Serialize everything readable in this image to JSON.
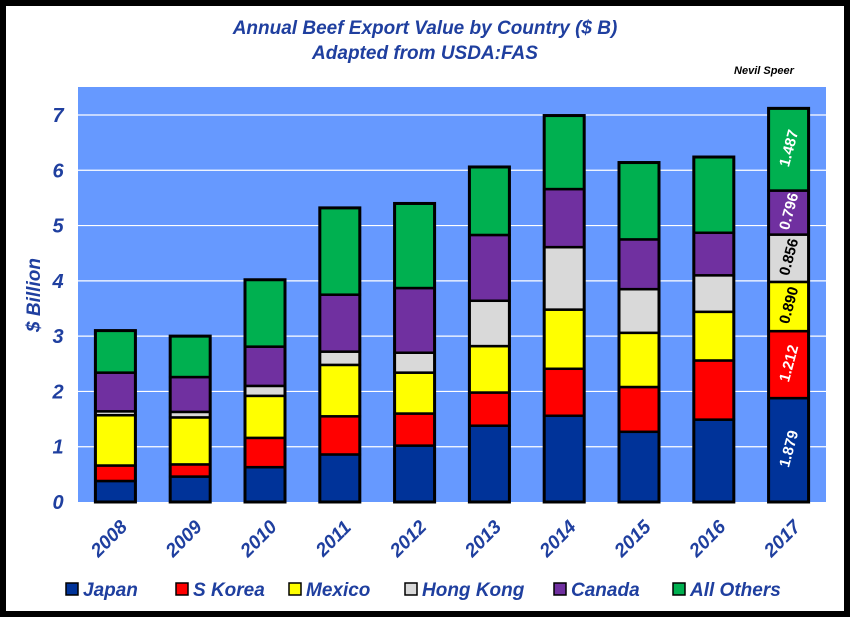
{
  "chart_data": {
    "type": "bar",
    "stacked": true,
    "title": "Annual Beef Export Value by Country ($ B)",
    "subtitle": "Adapted from USDA:FAS",
    "author": "Nevil Speer",
    "xlabel": "",
    "ylabel": "$ Billion",
    "ylim": [
      0,
      7
    ],
    "yticks": [
      "0",
      "1",
      "2",
      "3",
      "4",
      "5",
      "6",
      "7"
    ],
    "grid": true,
    "legend_position": "bottom",
    "plot_background": "#6699ff",
    "categories": [
      "2008",
      "2009",
      "2010",
      "2011",
      "2012",
      "2013",
      "2014",
      "2015",
      "2016",
      "2017"
    ],
    "series": [
      {
        "name": "Japan",
        "color": "#003399",
        "values": [
          0.38,
          0.46,
          0.63,
          0.86,
          1.02,
          1.38,
          1.56,
          1.27,
          1.49,
          1.879
        ]
      },
      {
        "name": "S Korea",
        "color": "#ff0000",
        "values": [
          0.28,
          0.22,
          0.53,
          0.69,
          0.58,
          0.6,
          0.85,
          0.81,
          1.07,
          1.212
        ]
      },
      {
        "name": "Mexico",
        "color": "#ffff00",
        "values": [
          0.91,
          0.85,
          0.76,
          0.93,
          0.74,
          0.84,
          1.07,
          0.98,
          0.88,
          0.89
        ]
      },
      {
        "name": "Hong Kong",
        "color": "#d9d9d9",
        "values": [
          0.07,
          0.1,
          0.18,
          0.24,
          0.36,
          0.82,
          1.13,
          0.79,
          0.66,
          0.856
        ]
      },
      {
        "name": "Canada",
        "color": "#7030a0",
        "values": [
          0.7,
          0.63,
          0.71,
          1.03,
          1.17,
          1.19,
          1.05,
          0.9,
          0.77,
          0.796
        ]
      },
      {
        "name": "All Others",
        "color": "#00b050",
        "values": [
          0.76,
          0.74,
          1.21,
          1.57,
          1.53,
          1.23,
          1.33,
          1.39,
          1.37,
          1.487
        ]
      }
    ],
    "data_labels": {
      "category": "2017",
      "texts": [
        "1.879",
        "1.212",
        "0.890",
        "0.856",
        "0.796",
        "1.487"
      ],
      "colors": [
        "#ffffff",
        "#ffffff",
        "#000000",
        "#000000",
        "#ffffff",
        "#ffffff"
      ]
    }
  }
}
